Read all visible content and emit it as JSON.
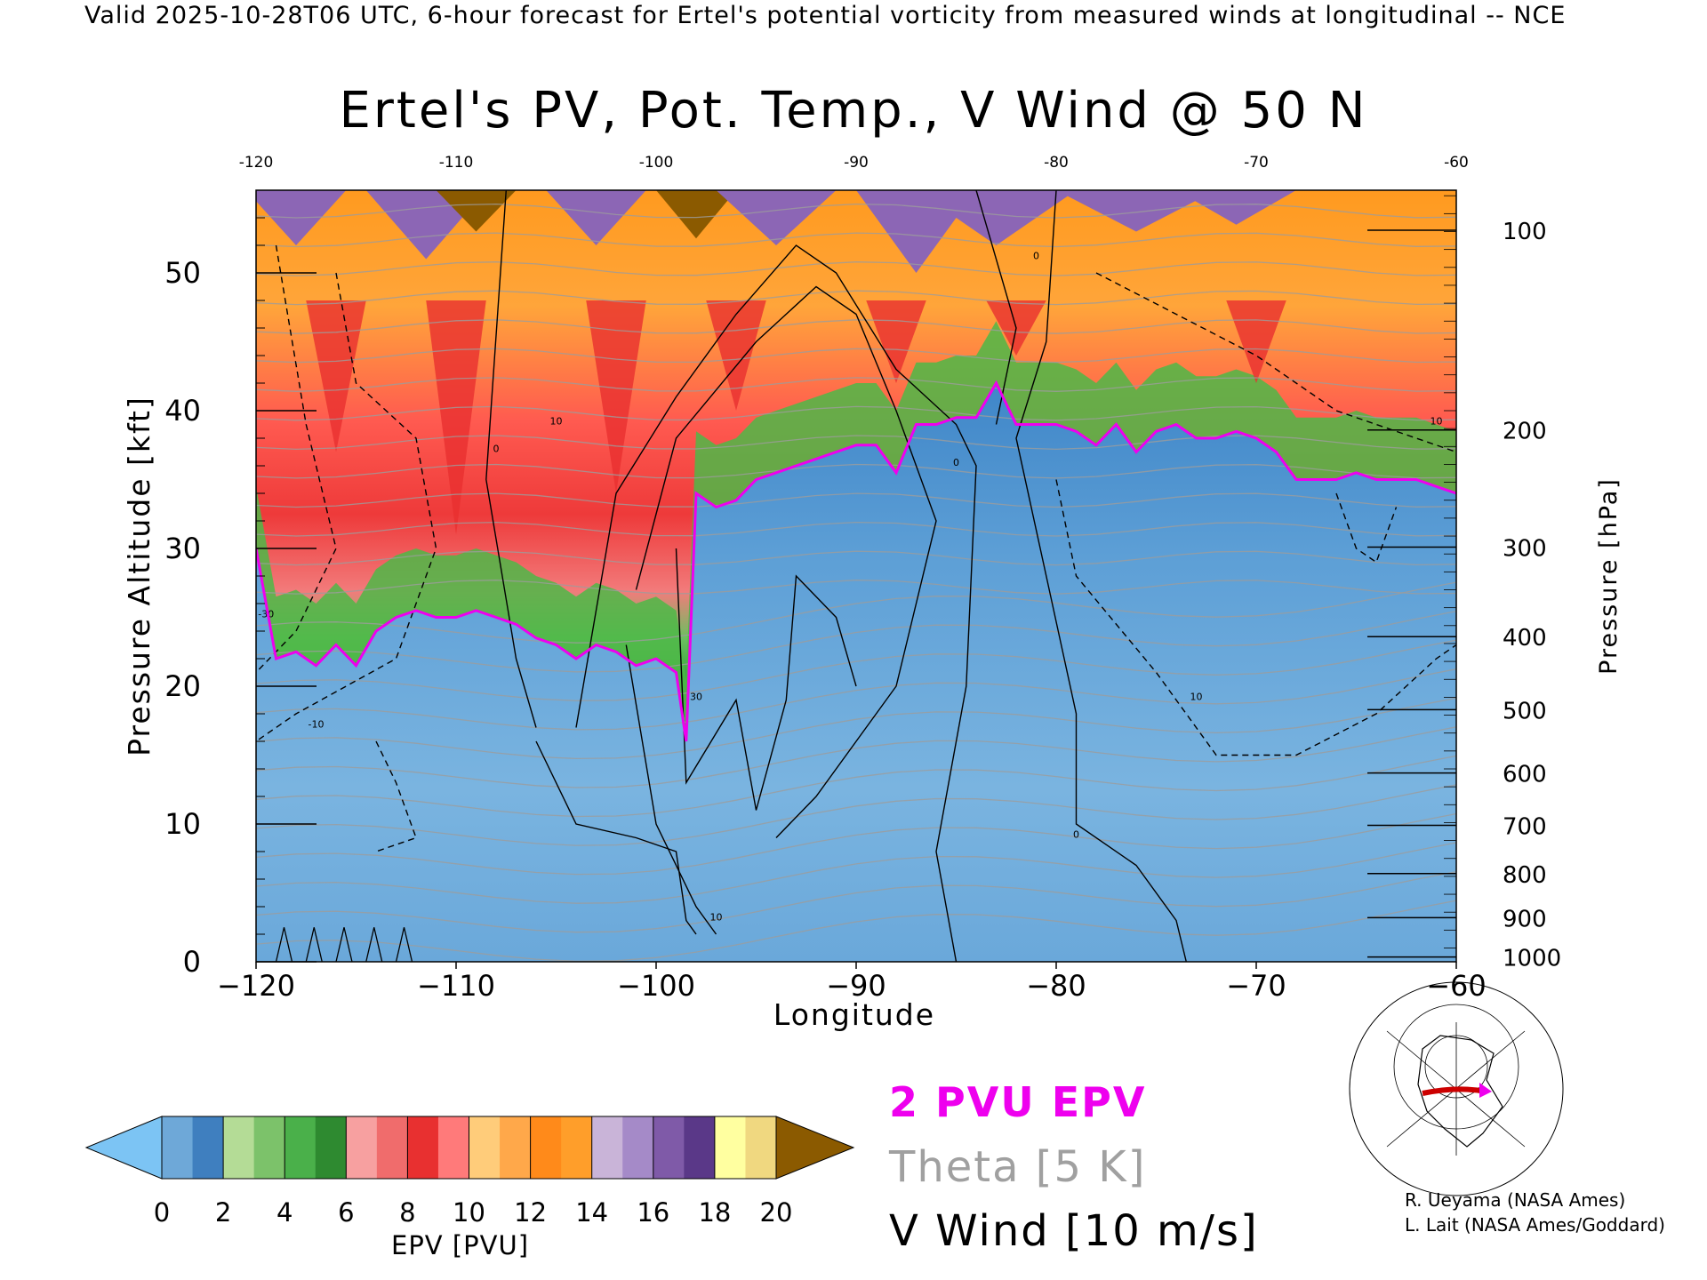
{
  "header": {
    "valid_text": "Valid 2025-10-28T06 UTC, 6-hour forecast for Ertel's potential vorticity from measured winds at longitudinal -- NCE"
  },
  "chart_data": {
    "type": "heatmap",
    "title": "Ertel's PV, Pot. Temp., V Wind @ 50 N",
    "xlabel": "Longitude",
    "ylabel_left": "Pressure Altitude [kft]",
    "ylabel_right": "Pressure [hPa]",
    "xlim": [
      -120,
      -60
    ],
    "ylim_kft": [
      0,
      56
    ],
    "x_ticks": [
      "-120",
      "-110",
      "-100",
      "-90",
      "-80",
      "-70",
      "-60"
    ],
    "x_ticks_top": [
      "-120",
      "-110",
      "-100",
      "-90",
      "-80",
      "-70",
      "-60"
    ],
    "y_ticks_left": [
      {
        "value": 0,
        "label": "0"
      },
      {
        "value": 10,
        "label": "10"
      },
      {
        "value": 20,
        "label": "20"
      },
      {
        "value": 30,
        "label": "30"
      },
      {
        "value": 40,
        "label": "40"
      },
      {
        "value": 50,
        "label": "50"
      }
    ],
    "y_ticks_right": [
      {
        "kft": 0.35,
        "label": "1000"
      },
      {
        "kft": 3.2,
        "label": "900"
      },
      {
        "kft": 6.4,
        "label": "800"
      },
      {
        "kft": 9.9,
        "label": "700"
      },
      {
        "kft": 13.7,
        "label": "600"
      },
      {
        "kft": 18.3,
        "label": "500"
      },
      {
        "kft": 23.6,
        "label": "400"
      },
      {
        "kft": 30.1,
        "label": "300"
      },
      {
        "kft": 38.6,
        "label": "200"
      },
      {
        "kft": 53.1,
        "label": "100"
      }
    ],
    "tropopause_2pvu_kft": {
      "lon": [
        -120,
        -119,
        -118,
        -117,
        -116,
        -115,
        -114,
        -113,
        -112,
        -111,
        -110,
        -109,
        -108,
        -107,
        -106,
        -105,
        -104,
        -103,
        -102,
        -101,
        -100,
        -99,
        -98.5,
        -98,
        -97,
        -96,
        -95,
        -94,
        -93,
        -92,
        -91,
        -90,
        -89,
        -88,
        -87,
        -86,
        -85,
        -84,
        -83,
        -82,
        -81,
        -80,
        -79,
        -78,
        -77,
        -76,
        -75,
        -74,
        -73,
        -72,
        -71,
        -70,
        -69,
        -68,
        -67,
        -66,
        -65,
        -64,
        -63,
        -62,
        -61,
        -60
      ],
      "kft": [
        30,
        22,
        22.5,
        21.5,
        23,
        21.5,
        24,
        25,
        25.5,
        25,
        25,
        25.5,
        25,
        24.5,
        23.5,
        23,
        22,
        23,
        22.5,
        21.5,
        22,
        21,
        16,
        34,
        33,
        33.5,
        35,
        35.5,
        36,
        36.5,
        37,
        37.5,
        37.5,
        35.5,
        39,
        39,
        39.5,
        39.5,
        42,
        39,
        39,
        39,
        38.5,
        37.5,
        39,
        37,
        38.5,
        39,
        38,
        38,
        38.5,
        38,
        37,
        35,
        35,
        35,
        35.5,
        35,
        35,
        35,
        34.5,
        34
      ]
    },
    "pv_layers": [
      {
        "name": "upper-layer",
        "color": "#ff9e2a"
      },
      {
        "name": "red-layer",
        "color": "#ff4444"
      },
      {
        "name": "green-layer",
        "color": "#4db848"
      },
      {
        "name": "troposphere",
        "color": "#5b9bd5"
      },
      {
        "name": "purple-peaks",
        "color": "#8c66b5"
      },
      {
        "name": "brown-peaks",
        "color": "#8b5a00"
      }
    ],
    "theta_K_levels": [
      290,
      300,
      310,
      320,
      330,
      340,
      350,
      360,
      370,
      380,
      390,
      400,
      410,
      420
    ],
    "v_wind_contours_ms": [
      {
        "label": "0",
        "lon": -108,
        "kft": 37
      },
      {
        "label": "10",
        "lon": -105,
        "kft": 39
      },
      {
        "label": "30",
        "lon": -98,
        "kft": 19
      },
      {
        "label": "10",
        "lon": -97,
        "kft": 3
      },
      {
        "label": "0",
        "lon": -85,
        "kft": 36
      },
      {
        "label": "0",
        "lon": -81,
        "kft": 51
      },
      {
        "label": "0",
        "lon": -79,
        "kft": 9
      },
      {
        "label": "10",
        "lon": -73,
        "kft": 19
      },
      {
        "label": "10",
        "lon": -61,
        "kft": 39
      },
      {
        "label": "-30",
        "lon": -119.5,
        "kft": 25
      },
      {
        "label": "-10",
        "lon": -117,
        "kft": 17
      }
    ],
    "colorbar": {
      "label": "EPV [PVU]",
      "ticks": [
        "0",
        "2",
        "4",
        "6",
        "8",
        "10",
        "12",
        "14",
        "16",
        "18",
        "20"
      ],
      "colors": [
        "#6ea8d8",
        "#3f7fbf",
        "#b4dc96",
        "#7cc26a",
        "#4ab04a",
        "#2e8a30",
        "#f7a0a0",
        "#f06c6c",
        "#e83030",
        "#ff7a7a",
        "#ffcc7a",
        "#ffa84a",
        "#ff8a1a",
        "#ff9e2a",
        "#c9b4d8",
        "#a58ac8",
        "#7f5aa8",
        "#5a3888",
        "#ffffa0",
        "#f0d880"
      ],
      "under_color": "#7cc4f4",
      "over_color": "#8b5a00"
    }
  },
  "legend": {
    "pvu": "2 PVU EPV",
    "theta": "Theta [5 K]",
    "vwind": "V Wind [10 m/s]"
  },
  "credits": {
    "line1": "R. Ueyama (NASA Ames)",
    "line2": "L. Lait (NASA Ames/Goddard)"
  }
}
